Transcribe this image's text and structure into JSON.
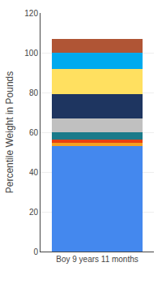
{
  "chart_data": {
    "type": "bar",
    "stacked": true,
    "categories": [
      "Boy 9 years 11 months"
    ],
    "series": [
      {
        "color": "#4488EE",
        "values": [
          53
        ]
      },
      {
        "color": "#F5A020",
        "values": [
          1.5
        ]
      },
      {
        "color": "#E84010",
        "values": [
          2
        ]
      },
      {
        "color": "#1A7A8A",
        "values": [
          3.5
        ]
      },
      {
        "color": "#C0C0C0",
        "values": [
          7
        ]
      },
      {
        "color": "#1E3560",
        "values": [
          12
        ]
      },
      {
        "color": "#FFE060",
        "values": [
          13
        ]
      },
      {
        "color": "#00AAEE",
        "values": [
          8
        ]
      },
      {
        "color": "#B05535",
        "values": [
          7
        ]
      }
    ],
    "ylabel": "Percentile Weight in Pounds",
    "ylim": [
      0,
      120
    ],
    "yticks": [
      0,
      20,
      40,
      60,
      80,
      100,
      120
    ],
    "grid": true
  }
}
